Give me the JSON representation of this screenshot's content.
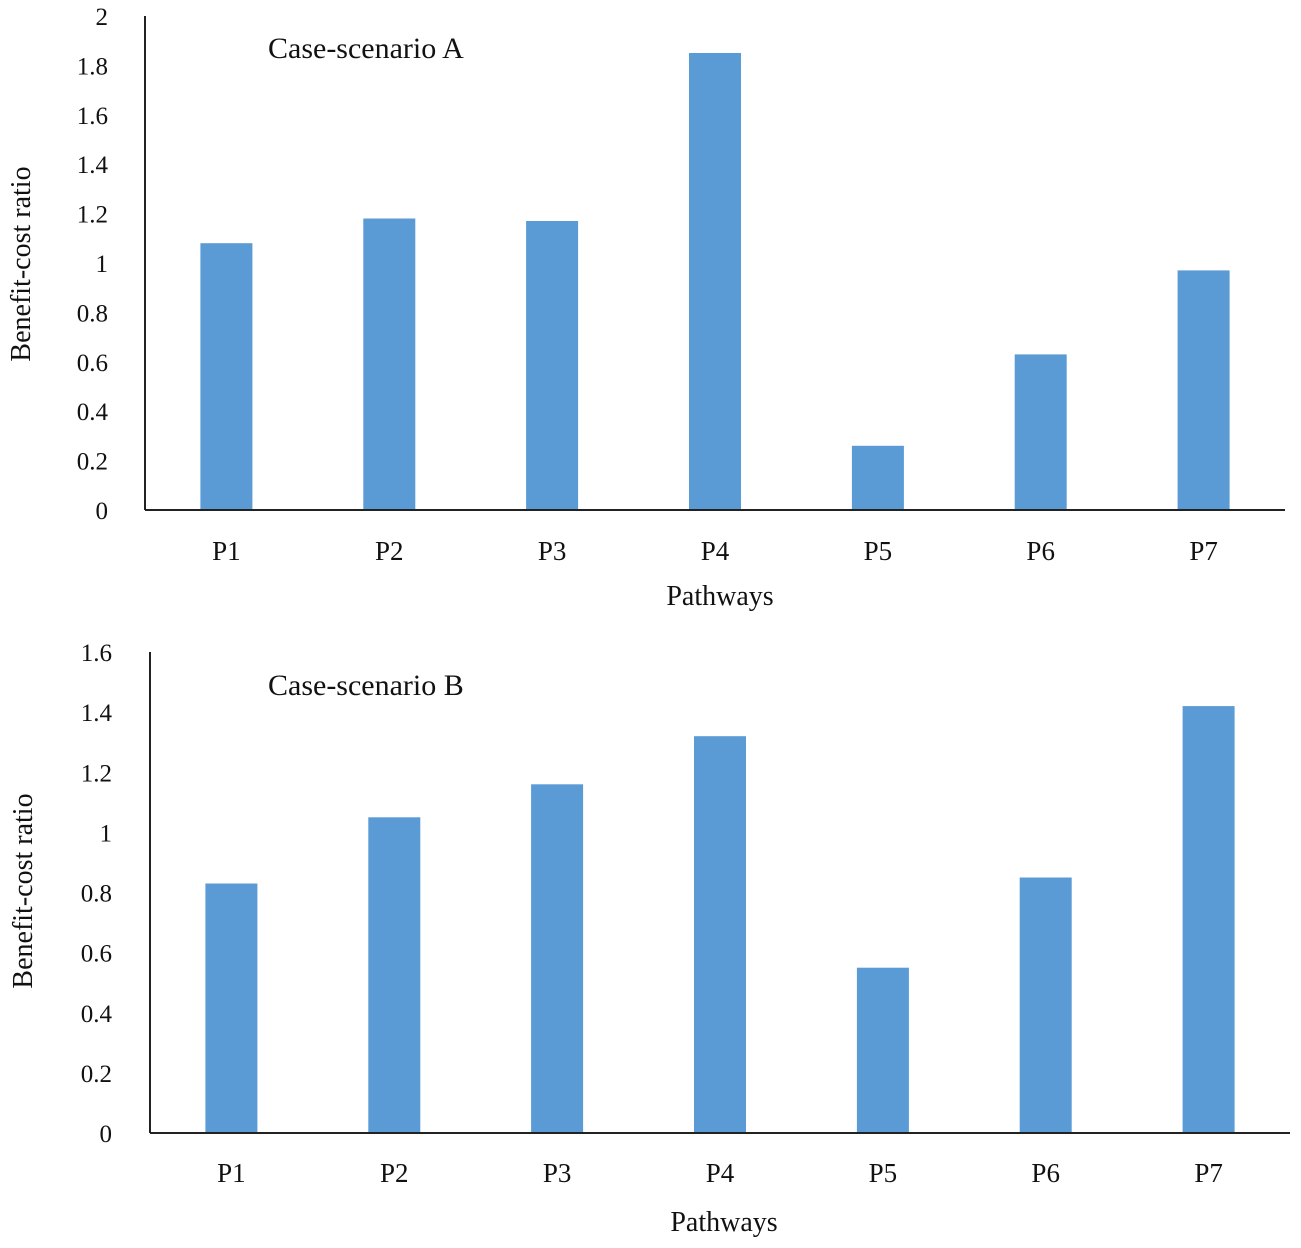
{
  "chart_data": [
    {
      "type": "bar",
      "title": "Case-scenario A",
      "xlabel": "Pathways",
      "ylabel": "Benefit-cost ratio",
      "categories": [
        "P1",
        "P2",
        "P3",
        "P4",
        "P5",
        "P6",
        "P7"
      ],
      "values": [
        1.08,
        1.18,
        1.17,
        1.85,
        0.26,
        0.63,
        0.97
      ],
      "ylim": [
        0,
        2
      ],
      "yticks": [
        0,
        0.2,
        0.4,
        0.6,
        0.8,
        1,
        1.2,
        1.4,
        1.6,
        1.8,
        2
      ],
      "ytick_labels": [
        "0",
        "0.2",
        "0.4",
        "0.6",
        "0.8",
        "1",
        "1.2",
        "1.4",
        "1.6",
        "1.8",
        "2"
      ],
      "grid": false,
      "bar_color": "#5b9bd5"
    },
    {
      "type": "bar",
      "title": "Case-scenario B",
      "xlabel": "Pathways",
      "ylabel": "Benefit-cost ratio",
      "categories": [
        "P1",
        "P2",
        "P3",
        "P4",
        "P5",
        "P6",
        "P7"
      ],
      "values": [
        0.83,
        1.05,
        1.16,
        1.32,
        0.55,
        0.85,
        1.42
      ],
      "ylim": [
        0,
        1.6
      ],
      "yticks": [
        0,
        0.2,
        0.4,
        0.6,
        0.8,
        1,
        1.2,
        1.4,
        1.6
      ],
      "ytick_labels": [
        "0",
        "0.2",
        "0.4",
        "0.6",
        "0.8",
        "1",
        "1.2",
        "1.4",
        "1.6"
      ],
      "grid": false,
      "bar_color": "#5b9bd5"
    }
  ]
}
